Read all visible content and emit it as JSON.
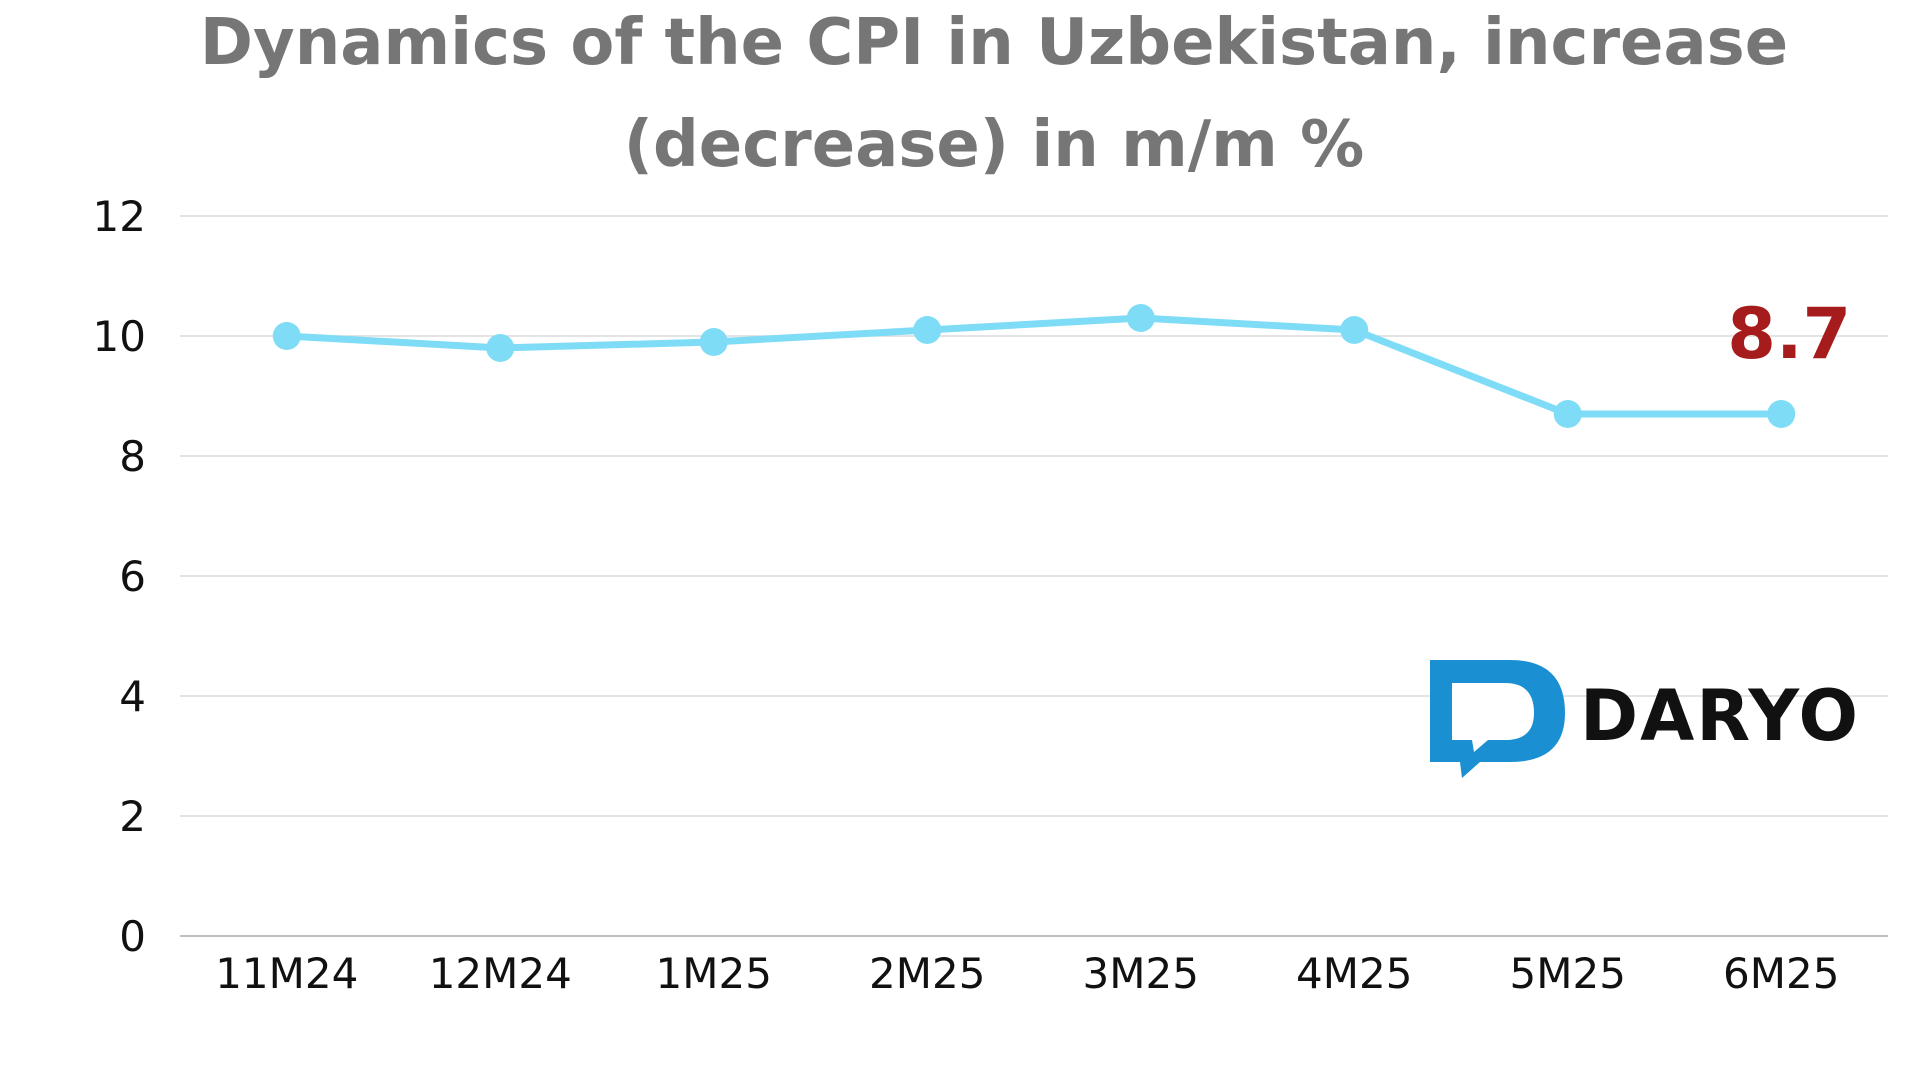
{
  "chart_data": {
    "type": "line",
    "title_lines": [
      "Dynamics of the CPI in Uzbekistan, increase",
      "(decrease) in m/m %"
    ],
    "categories": [
      "11M24",
      "12M24",
      "1M25",
      "2M25",
      "3M25",
      "4M25",
      "5M25",
      "6M25"
    ],
    "series": [
      {
        "values": [
          10.0,
          9.8,
          9.9,
          10.1,
          10.3,
          10.1,
          8.7,
          8.7
        ]
      }
    ],
    "ylim": [
      0,
      12
    ],
    "yticks": [
      "0",
      "2",
      "4",
      "6",
      "8",
      "10",
      "12"
    ],
    "annotation": {
      "category": "6M25",
      "text": "8.7"
    },
    "grid": true,
    "legend": "none",
    "colors": {
      "line": "#7fdcf7",
      "marker": "#7fdcf7",
      "grid": "#dcdcdc",
      "axis": "#bfbfbf",
      "title": "#767676",
      "annotation": "#a61c1c",
      "logo_blue": "#1a8fd1",
      "logo_text": "#111111"
    }
  },
  "logo": {
    "text": "DARYO",
    "icon": "daryo-speech-bubble-icon"
  }
}
